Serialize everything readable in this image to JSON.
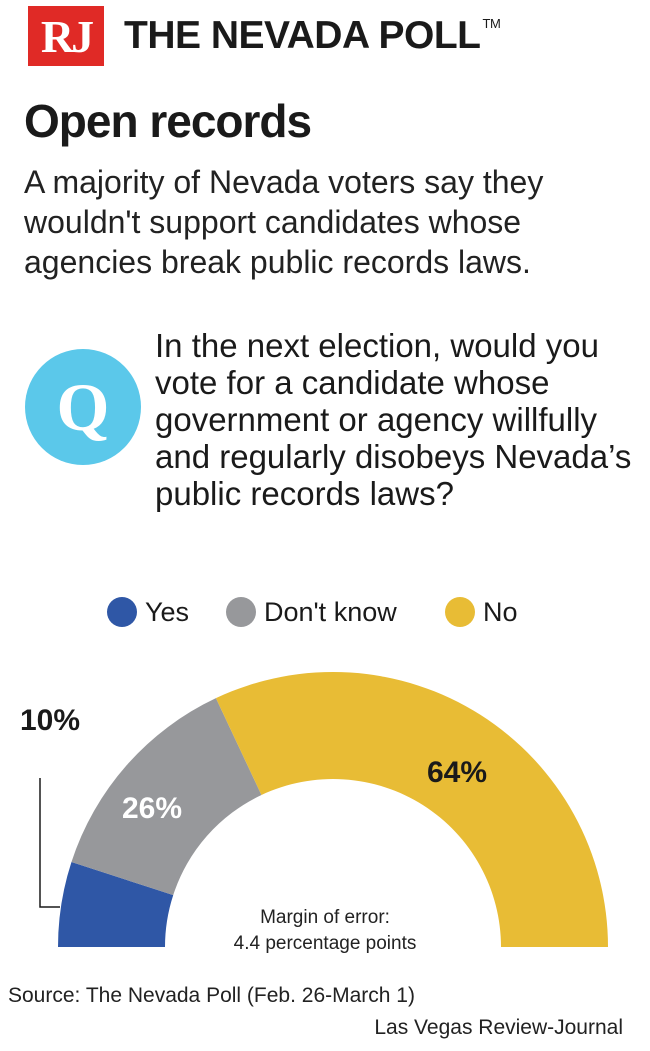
{
  "header": {
    "logo": "RJ",
    "title": "THE NEVADA POLL",
    "trademark": "TM"
  },
  "headline": "Open records",
  "subhead": "A majority of Nevada voters say they wouldn't support candidates whose agencies break public records laws.",
  "question": {
    "badge": "Q",
    "text": "In the next election, would you vote for a candidate whose government or agency willfully and regularly disobeys Nevada’s public records laws?"
  },
  "chart_data": {
    "type": "pie",
    "shape": "half-donut",
    "series": [
      {
        "label": "Yes",
        "value": 10,
        "display": "10%",
        "color": "#2f57a6"
      },
      {
        "label": "Don't know",
        "value": 26,
        "display": "26%",
        "color": "#97989b"
      },
      {
        "label": "No",
        "value": 64,
        "display": "64%",
        "color": "#e8bc35"
      }
    ],
    "legend_position": "top",
    "note_lines": [
      "Margin of error:",
      "4.4 percentage points"
    ]
  },
  "footer": {
    "source": "Source: The Nevada Poll (Feb. 26-March 1)",
    "credit": "Las Vegas Review-Journal"
  }
}
